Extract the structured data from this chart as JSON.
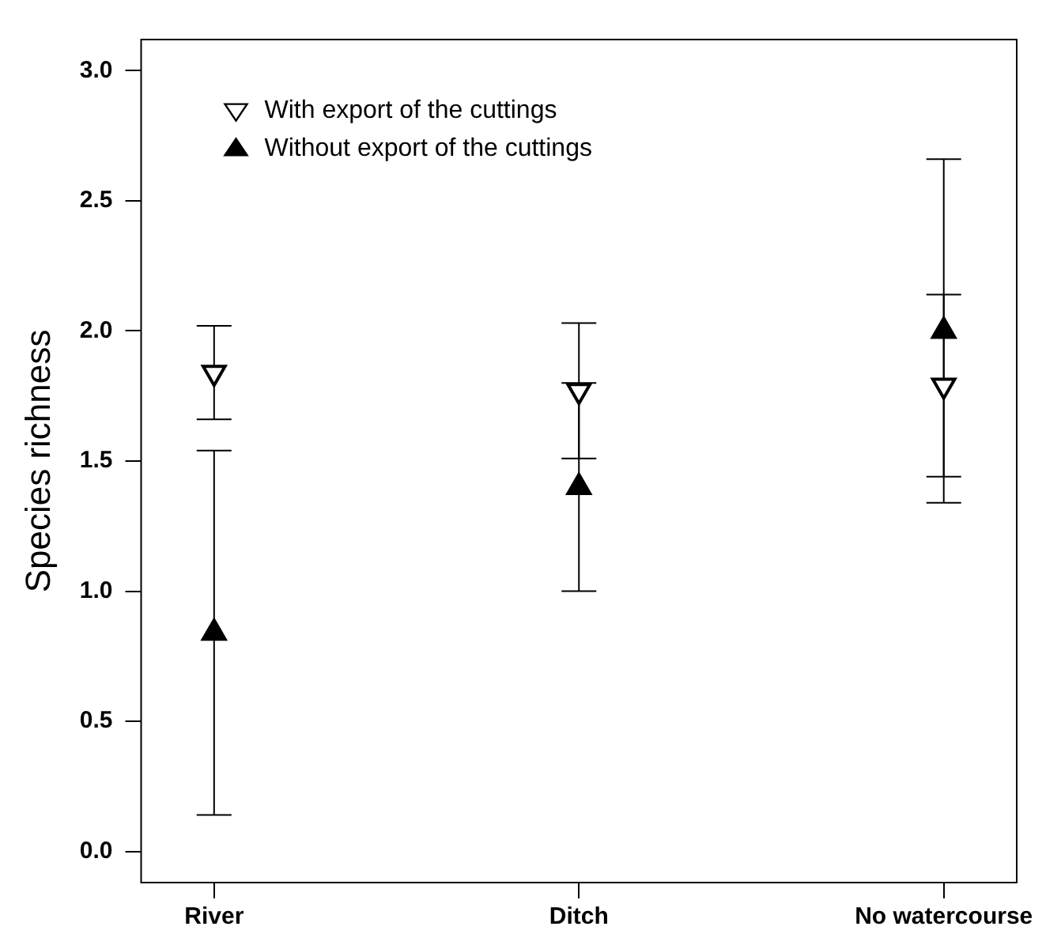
{
  "chart_data": {
    "type": "scatter",
    "ylabel": "Species richness",
    "categories": [
      "River",
      "Ditch",
      "No watercourse"
    ],
    "series": [
      {
        "name": "With export of the cuttings",
        "color": "#000000",
        "values": [
          1.84,
          1.77,
          1.79
        ],
        "errors": [
          0.18,
          0.26,
          0.35
        ]
      },
      {
        "name": "Without export of the cuttings",
        "color": "#000000",
        "values": [
          0.84,
          1.4,
          2.0
        ],
        "errors": [
          0.7,
          0.4,
          0.66
        ]
      }
    ],
    "ylim": [
      -0.12,
      3.12
    ],
    "yticks": [
      {
        "value": 0,
        "label": "0.0"
      },
      {
        "value": 0.5,
        "label": "0.5"
      },
      {
        "value": 1,
        "label": "1.0"
      },
      {
        "value": 1.5,
        "label": "1.5"
      },
      {
        "value": 2,
        "label": "2.0"
      },
      {
        "value": 2.5,
        "label": "2.5"
      },
      {
        "value": 3,
        "label": "3.0"
      }
    ],
    "grid": false,
    "legend": "top left",
    "marker": "triangle"
  }
}
